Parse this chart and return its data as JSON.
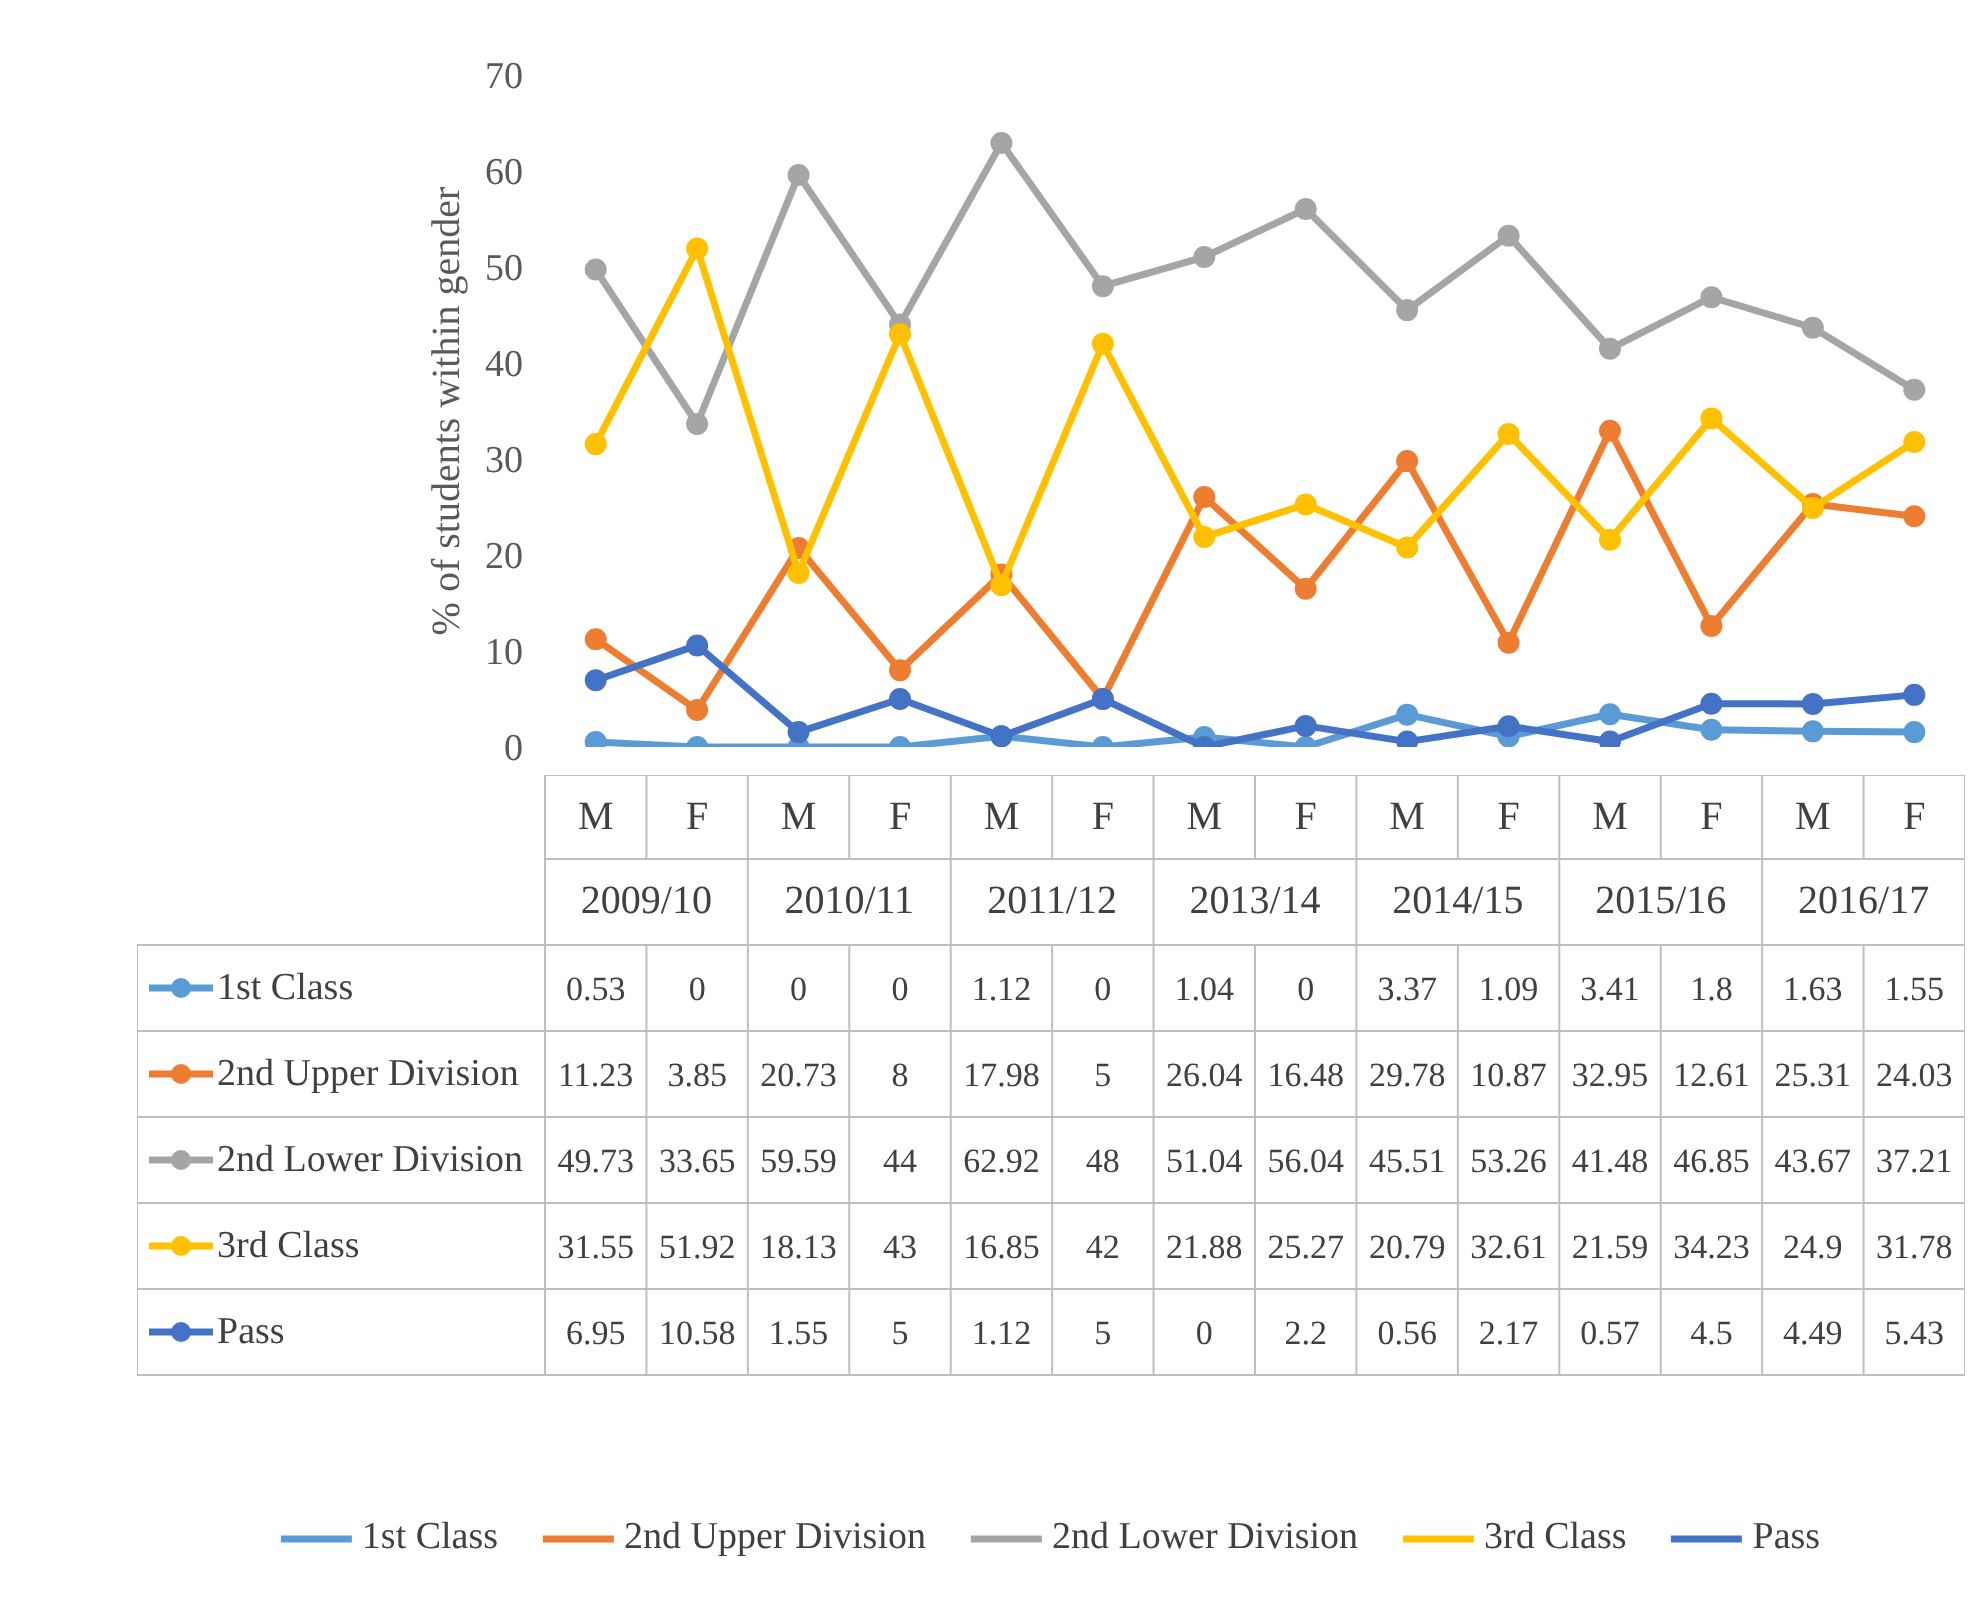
{
  "chart_data": {
    "type": "line",
    "ylabel": "% of students within gender",
    "categories": [
      "M",
      "F",
      "M",
      "F",
      "M",
      "F",
      "M",
      "F",
      "M",
      "F",
      "M",
      "F",
      "M",
      "F"
    ],
    "annotations": [
      "2009/10",
      "2010/11",
      "2011/12",
      "2013/14",
      "2014/15",
      "2015/16",
      "2016/17"
    ],
    "ylim": [
      0,
      70
    ],
    "yticks": [
      0,
      10,
      20,
      30,
      40,
      50,
      60,
      70
    ],
    "grid": false,
    "legend": "bottom",
    "marker": "circle",
    "line_style": "solid",
    "data_labels": true,
    "series": [
      {
        "name": "1st Class",
        "color": "#5b9bd5",
        "values": [
          0.53,
          0,
          0,
          0,
          1.12,
          0,
          1.04,
          0,
          3.37,
          1.09,
          3.41,
          1.8,
          1.63,
          1.55
        ]
      },
      {
        "name": "2nd Upper Division",
        "color": "#ed7d31",
        "values": [
          11.23,
          3.85,
          20.73,
          8,
          17.98,
          5,
          26.04,
          16.48,
          29.78,
          10.87,
          32.95,
          12.61,
          25.31,
          24.03
        ]
      },
      {
        "name": "2nd Lower Division",
        "color": "#a5a5a5",
        "values": [
          49.73,
          33.65,
          59.59,
          44,
          62.92,
          48,
          51.04,
          56.04,
          45.51,
          53.26,
          41.48,
          46.85,
          43.67,
          37.21
        ]
      },
      {
        "name": "3rd Class",
        "color": "#ffc000",
        "values": [
          31.55,
          51.92,
          18.13,
          43,
          16.85,
          42,
          21.88,
          25.27,
          20.79,
          32.61,
          21.59,
          34.23,
          24.9,
          31.78
        ]
      },
      {
        "name": "Pass",
        "color": "#4472c4",
        "values": [
          6.95,
          10.58,
          1.55,
          5,
          1.12,
          5,
          0,
          2.2,
          0.56,
          2.17,
          0.57,
          4.5,
          4.49,
          5.43
        ]
      }
    ]
  }
}
